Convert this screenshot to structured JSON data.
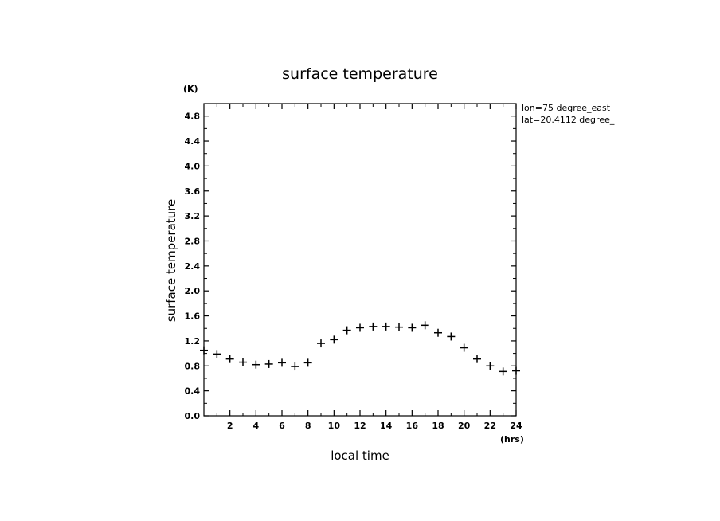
{
  "chart_data": {
    "type": "scatter",
    "title": "surface temperature",
    "xlabel": "local time",
    "ylabel": "surface temperature",
    "x_unit": "(hrs)",
    "y_unit": "(K)",
    "annotations": [
      "lon=75 degree_east",
      "lat=20.4112 degree_"
    ],
    "xlim": [
      0,
      24
    ],
    "ylim": [
      0,
      5
    ],
    "x_ticks": [
      2,
      4,
      6,
      8,
      10,
      12,
      14,
      16,
      18,
      20,
      22,
      24
    ],
    "y_ticks": [
      0.0,
      0.4,
      0.8,
      1.2,
      1.6,
      2.0,
      2.4,
      2.8,
      3.2,
      3.6,
      4.0,
      4.4,
      4.8
    ],
    "x_tick_labels": [
      "2",
      "4",
      "6",
      "8",
      "10",
      "12",
      "14",
      "16",
      "18",
      "20",
      "22",
      "24"
    ],
    "y_tick_labels": [
      "0.0",
      "0.4",
      "0.8",
      "1.2",
      "1.6",
      "2.0",
      "2.4",
      "2.8",
      "3.2",
      "3.6",
      "4.0",
      "4.4",
      "4.8"
    ],
    "marker": "plus",
    "grid": false,
    "x": [
      0,
      1,
      2,
      3,
      4,
      5,
      6,
      7,
      8,
      9,
      10,
      11,
      12,
      13,
      14,
      15,
      16,
      17,
      18,
      19,
      20,
      21,
      22,
      23,
      24
    ],
    "y": [
      1.05,
      0.99,
      0.91,
      0.86,
      0.82,
      0.83,
      0.85,
      0.79,
      0.85,
      1.16,
      1.22,
      1.37,
      1.41,
      1.43,
      1.43,
      1.42,
      1.41,
      1.45,
      1.33,
      1.27,
      1.09,
      0.91,
      0.8,
      0.71,
      0.72
    ]
  }
}
